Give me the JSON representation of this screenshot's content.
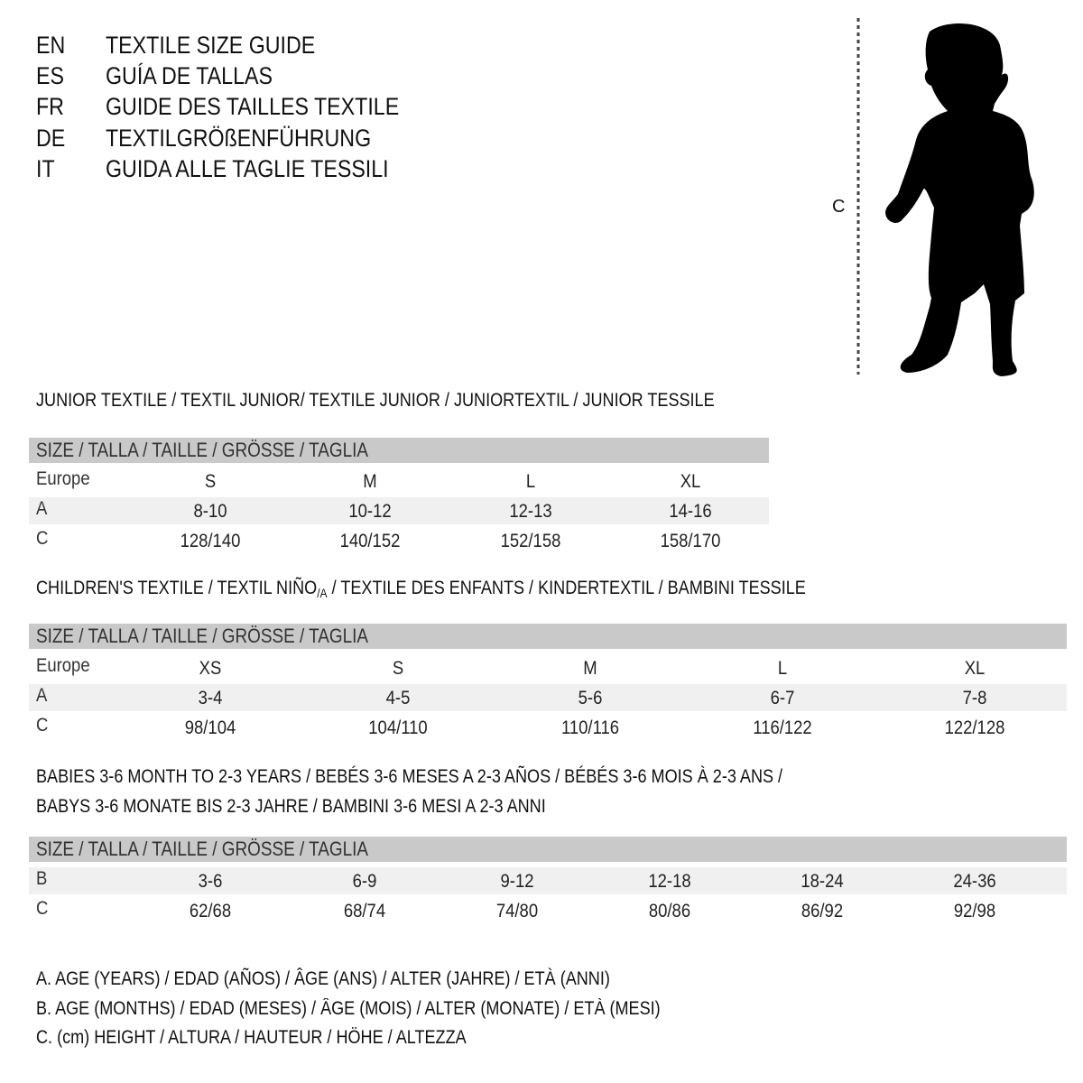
{
  "languages": [
    {
      "code": "EN",
      "title": "TEXTILE SIZE GUIDE"
    },
    {
      "code": "ES",
      "title": "GUÍA DE TALLAS"
    },
    {
      "code": "FR",
      "title": "GUIDE DES TAILLES TEXTILE"
    },
    {
      "code": "DE",
      "title": "TEXTILGRÖßENFÜHRUNG"
    },
    {
      "code": "IT",
      "title": "GUIDA ALLE TAGLIE TESSILI"
    }
  ],
  "figure": {
    "measure_label": "C",
    "icon": "child-silhouette-icon"
  },
  "colors": {
    "header_bar": "#c9c9c9",
    "shaded_row": "#f0f0f0"
  },
  "sections": [
    {
      "heading": "JUNIOR TEXTILE / TEXTIL JUNIOR/ TEXTILE JUNIOR / JUNIORTEXTIL / JUNIOR TESSILE",
      "size_header": "SIZE / TALLA / TAILLE / GRÖSSE / TAGLIA",
      "rows": [
        {
          "label": "Europe",
          "values": [
            "S",
            "M",
            "L",
            "XL"
          ]
        },
        {
          "label": "A",
          "values": [
            "8-10",
            "10-12",
            "12-13",
            "14-16"
          ]
        },
        {
          "label": "C",
          "values": [
            "128/140",
            "140/152",
            "152/158",
            "158/170"
          ]
        }
      ]
    },
    {
      "heading_parts": [
        "CHILDREN'S TEXTILE / TEXTIL NIÑO",
        "/A",
        " / TEXTILE DES ENFANTS / KINDERTEXTIL / BAMBINI TESSILE"
      ],
      "size_header": "SIZE / TALLA / TAILLE / GRÖSSE / TAGLIA",
      "rows": [
        {
          "label": "Europe",
          "values": [
            "XS",
            "S",
            "M",
            "L",
            "XL"
          ]
        },
        {
          "label": "A",
          "values": [
            "3-4",
            "4-5",
            "5-6",
            "6-7",
            "7-8"
          ]
        },
        {
          "label": "C",
          "values": [
            "98/104",
            "104/110",
            "110/116",
            "116/122",
            "122/128"
          ]
        }
      ]
    },
    {
      "heading_lines": [
        "BABIES 3-6 MONTH TO 2-3 YEARS / BEBÉS 3-6 MESES A 2-3 AÑOS / BÉBÉS 3-6 MOIS À 2-3 ANS /",
        "BABYS 3-6 MONATE BIS 2-3 JAHRE / BAMBINI 3-6 MESI A 2-3 ANNI"
      ],
      "size_header": "SIZE / TALLA / TAILLE / GRÖSSE / TAGLIA",
      "rows": [
        {
          "label": "B",
          "values": [
            "3-6",
            "6-9",
            "9-12",
            "12-18",
            "18-24",
            "24-36"
          ]
        },
        {
          "label": "C",
          "values": [
            "62/68",
            "68/74",
            "74/80",
            "80/86",
            "86/92",
            "92/98"
          ]
        }
      ]
    }
  ],
  "legend": [
    "A. AGE (YEARS) / EDAD (AÑOS) / ÂGE (ANS) / ALTER (JAHRE) / ETÀ (ANNI)",
    "B. AGE (MONTHS) / EDAD (MESES) / ÂGE (MOIS) / ALTER (MONATE) / ETÀ (MESI)",
    "C. (cm) HEIGHT / ALTURA / HAUTEUR / HÖHE / ALTEZZA"
  ]
}
